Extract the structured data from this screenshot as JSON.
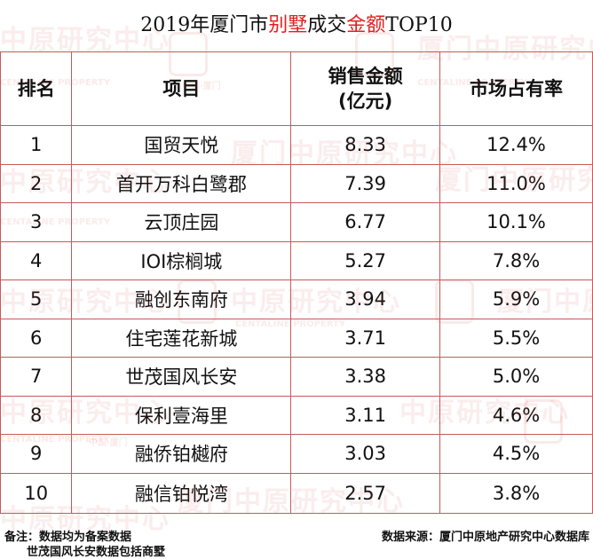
{
  "title": {
    "pre": "2019年厦门市",
    "hl1": "别墅",
    "mid": "成交",
    "hl2": "金额",
    "post": "TOP10"
  },
  "headers": {
    "rank": "排名",
    "project": "项目",
    "sales_line1": "销售金额",
    "sales_line2": "(亿元)",
    "share": "市场占有率"
  },
  "rows": [
    {
      "rank": "1",
      "project": "国贸天悦",
      "sales": "8.33",
      "share": "12.4%"
    },
    {
      "rank": "2",
      "project": "首开万科白鹭郡",
      "sales": "7.39",
      "share": "11.0%"
    },
    {
      "rank": "3",
      "project": "云顶庄园",
      "sales": "6.77",
      "share": "10.1%"
    },
    {
      "rank": "4",
      "project": "IOI棕榈城",
      "sales": "5.27",
      "share": "7.8%"
    },
    {
      "rank": "5",
      "project": "融创东南府",
      "sales": "3.94",
      "share": "5.9%"
    },
    {
      "rank": "6",
      "project": "住宅莲花新城",
      "sales": "3.71",
      "share": "5.5%"
    },
    {
      "rank": "7",
      "project": "世茂国风长安",
      "sales": "3.38",
      "share": "5.0%"
    },
    {
      "rank": "8",
      "project": "保利壹海里",
      "sales": "3.11",
      "share": "4.6%"
    },
    {
      "rank": "9",
      "project": "融侨铂樾府",
      "sales": "3.03",
      "share": "4.5%"
    },
    {
      "rank": "10",
      "project": "融信铂悦湾",
      "sales": "2.57",
      "share": "3.8%"
    }
  ],
  "footer": {
    "note": "备注：数据均为备案数据",
    "note2": "世茂国风长安数据包括商墅",
    "source": "数据来源：厦门中原地产研究中心数据库"
  },
  "watermark": {
    "text": "中原研究中心",
    "text_alt": "厦门中原研究中心",
    "small": "CENTALINE PROPERTY",
    "small_alt": "中国·厦门"
  },
  "colors": {
    "accent": "#e02020",
    "border": "#c45a5a"
  }
}
